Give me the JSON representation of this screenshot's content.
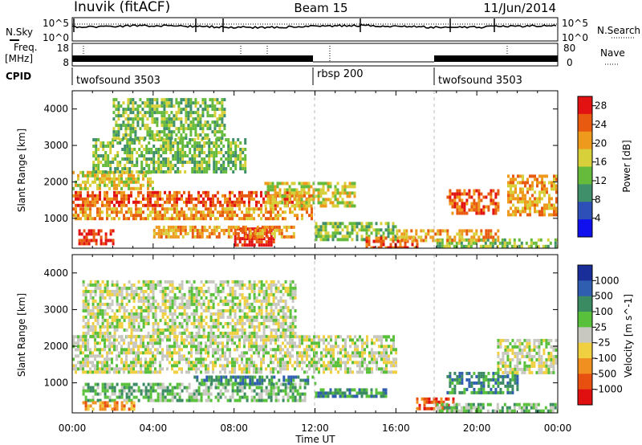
{
  "header": {
    "station": "Inuvik (fitACF)",
    "beam": "Beam 15",
    "date": "11/Jun/2014"
  },
  "top_panels": {
    "nsky_label": "N.Sky",
    "nsky_ticks": [
      "10^5",
      "10^0"
    ],
    "nsearch_label": "N.Search",
    "nsearch_ticks": [
      "10^5",
      "10^0"
    ],
    "freq_label": "Freq.",
    "freq_unit": "[MHz]",
    "freq_ticks": [
      "18",
      "8"
    ],
    "nave_label": "Nave",
    "nave_ticks": [
      "80",
      "0"
    ],
    "cpid_label": "CPID",
    "cpid_segments": [
      {
        "label": "twofsound 3503",
        "start_hour": 0
      },
      {
        "label": "rbsp 200",
        "start_hour": 12
      },
      {
        "label": "twofsound 3503",
        "start_hour": 18
      }
    ]
  },
  "chart_data": [
    {
      "type": "heatmap",
      "parameter": "Power",
      "ylabel": "Slant Range [km]",
      "ylim": [
        180,
        4500
      ],
      "yticks": [
        "1000",
        "2000",
        "3000",
        "4000"
      ],
      "xlim_hours": [
        0,
        24
      ],
      "colorbar": {
        "label": "Power [dB]",
        "ticks": [
          "4",
          "8",
          "12",
          "16",
          "20",
          "24",
          "28"
        ],
        "range": [
          0,
          30
        ]
      },
      "colors": [
        "#1010ee",
        "#2d4fb8",
        "#3f8f6a",
        "#66bb3c",
        "#d7d03a",
        "#ee9a1c",
        "#e85a10",
        "#e21212"
      ],
      "regions": [
        {
          "t": [
            0.0,
            11.8
          ],
          "r": [
            1350,
            1750
          ],
          "level": 6
        },
        {
          "t": [
            0.0,
            11.8
          ],
          "r": [
            1000,
            1300
          ],
          "level": 5
        },
        {
          "t": [
            0.0,
            4.0
          ],
          "r": [
            1800,
            2300
          ],
          "level": 4
        },
        {
          "t": [
            1.0,
            8.5
          ],
          "r": [
            2300,
            3200
          ],
          "level": 3
        },
        {
          "t": [
            2.0,
            7.5
          ],
          "r": [
            3200,
            4300
          ],
          "level": 3
        },
        {
          "t": [
            0.3,
            2.0
          ],
          "r": [
            300,
            700
          ],
          "level": 7
        },
        {
          "t": [
            8.0,
            10.0
          ],
          "r": [
            250,
            750
          ],
          "level": 7
        },
        {
          "t": [
            4.0,
            11.0
          ],
          "r": [
            500,
            800
          ],
          "level": 5
        },
        {
          "t": [
            9.5,
            14.0
          ],
          "r": [
            1300,
            2000
          ],
          "level": 4
        },
        {
          "t": [
            12.0,
            16.0
          ],
          "r": [
            450,
            900
          ],
          "level": 3
        },
        {
          "t": [
            14.5,
            17.0
          ],
          "r": [
            200,
            500
          ],
          "level": 6
        },
        {
          "t": [
            18.5,
            21.0
          ],
          "r": [
            1100,
            1800
          ],
          "level": 6
        },
        {
          "t": [
            21.5,
            24.0
          ],
          "r": [
            1100,
            2200
          ],
          "level": 5
        },
        {
          "t": [
            18.0,
            24.0
          ],
          "r": [
            200,
            450
          ],
          "level": 3
        },
        {
          "t": [
            16.0,
            21.0
          ],
          "r": [
            350,
            700
          ],
          "level": 5
        }
      ]
    },
    {
      "type": "heatmap",
      "parameter": "Velocity",
      "ylabel": "Slant Range [km]",
      "ylim": [
        180,
        4500
      ],
      "yticks": [
        "1000",
        "2000",
        "3000",
        "4000"
      ],
      "xlim_hours": [
        0,
        24
      ],
      "xticks": [
        "00:00",
        "04:00",
        "08:00",
        "12:00",
        "16:00",
        "20:00",
        "00:00"
      ],
      "xlabel": "Time UT",
      "colorbar": {
        "label": "Velocity [m s^-1]",
        "ticks": [
          "1000",
          "500",
          "100",
          "25",
          "-25",
          "-100",
          "-500",
          "-1000"
        ]
      },
      "colors": [
        "#1a2e9a",
        "#2f5db0",
        "#3a8a62",
        "#58c03a",
        "#c8c8c0",
        "#f0d040",
        "#f09020",
        "#e85010",
        "#e01010"
      ],
      "regions": [
        {
          "t": [
            0.0,
            16.0
          ],
          "r": [
            1300,
            2300
          ],
          "level": 4
        },
        {
          "t": [
            0.5,
            11.0
          ],
          "r": [
            2300,
            3800
          ],
          "level": 4
        },
        {
          "t": [
            0.5,
            11.5
          ],
          "r": [
            500,
            1000
          ],
          "level": 3
        },
        {
          "t": [
            6.0,
            12.0
          ],
          "r": [
            1000,
            1200
          ],
          "level": 2
        },
        {
          "t": [
            12.0,
            15.5
          ],
          "r": [
            650,
            850
          ],
          "level": 2
        },
        {
          "t": [
            0.5,
            3.0
          ],
          "r": [
            250,
            500
          ],
          "level": 6
        },
        {
          "t": [
            18.5,
            22.0
          ],
          "r": [
            700,
            1300
          ],
          "level": 2
        },
        {
          "t": [
            21.0,
            24.0
          ],
          "r": [
            1300,
            2200
          ],
          "level": 4
        },
        {
          "t": [
            17.0,
            19.0
          ],
          "r": [
            300,
            600
          ],
          "level": 7
        },
        {
          "t": [
            18.0,
            24.0
          ],
          "r": [
            200,
            450
          ],
          "level": 3
        }
      ]
    }
  ]
}
